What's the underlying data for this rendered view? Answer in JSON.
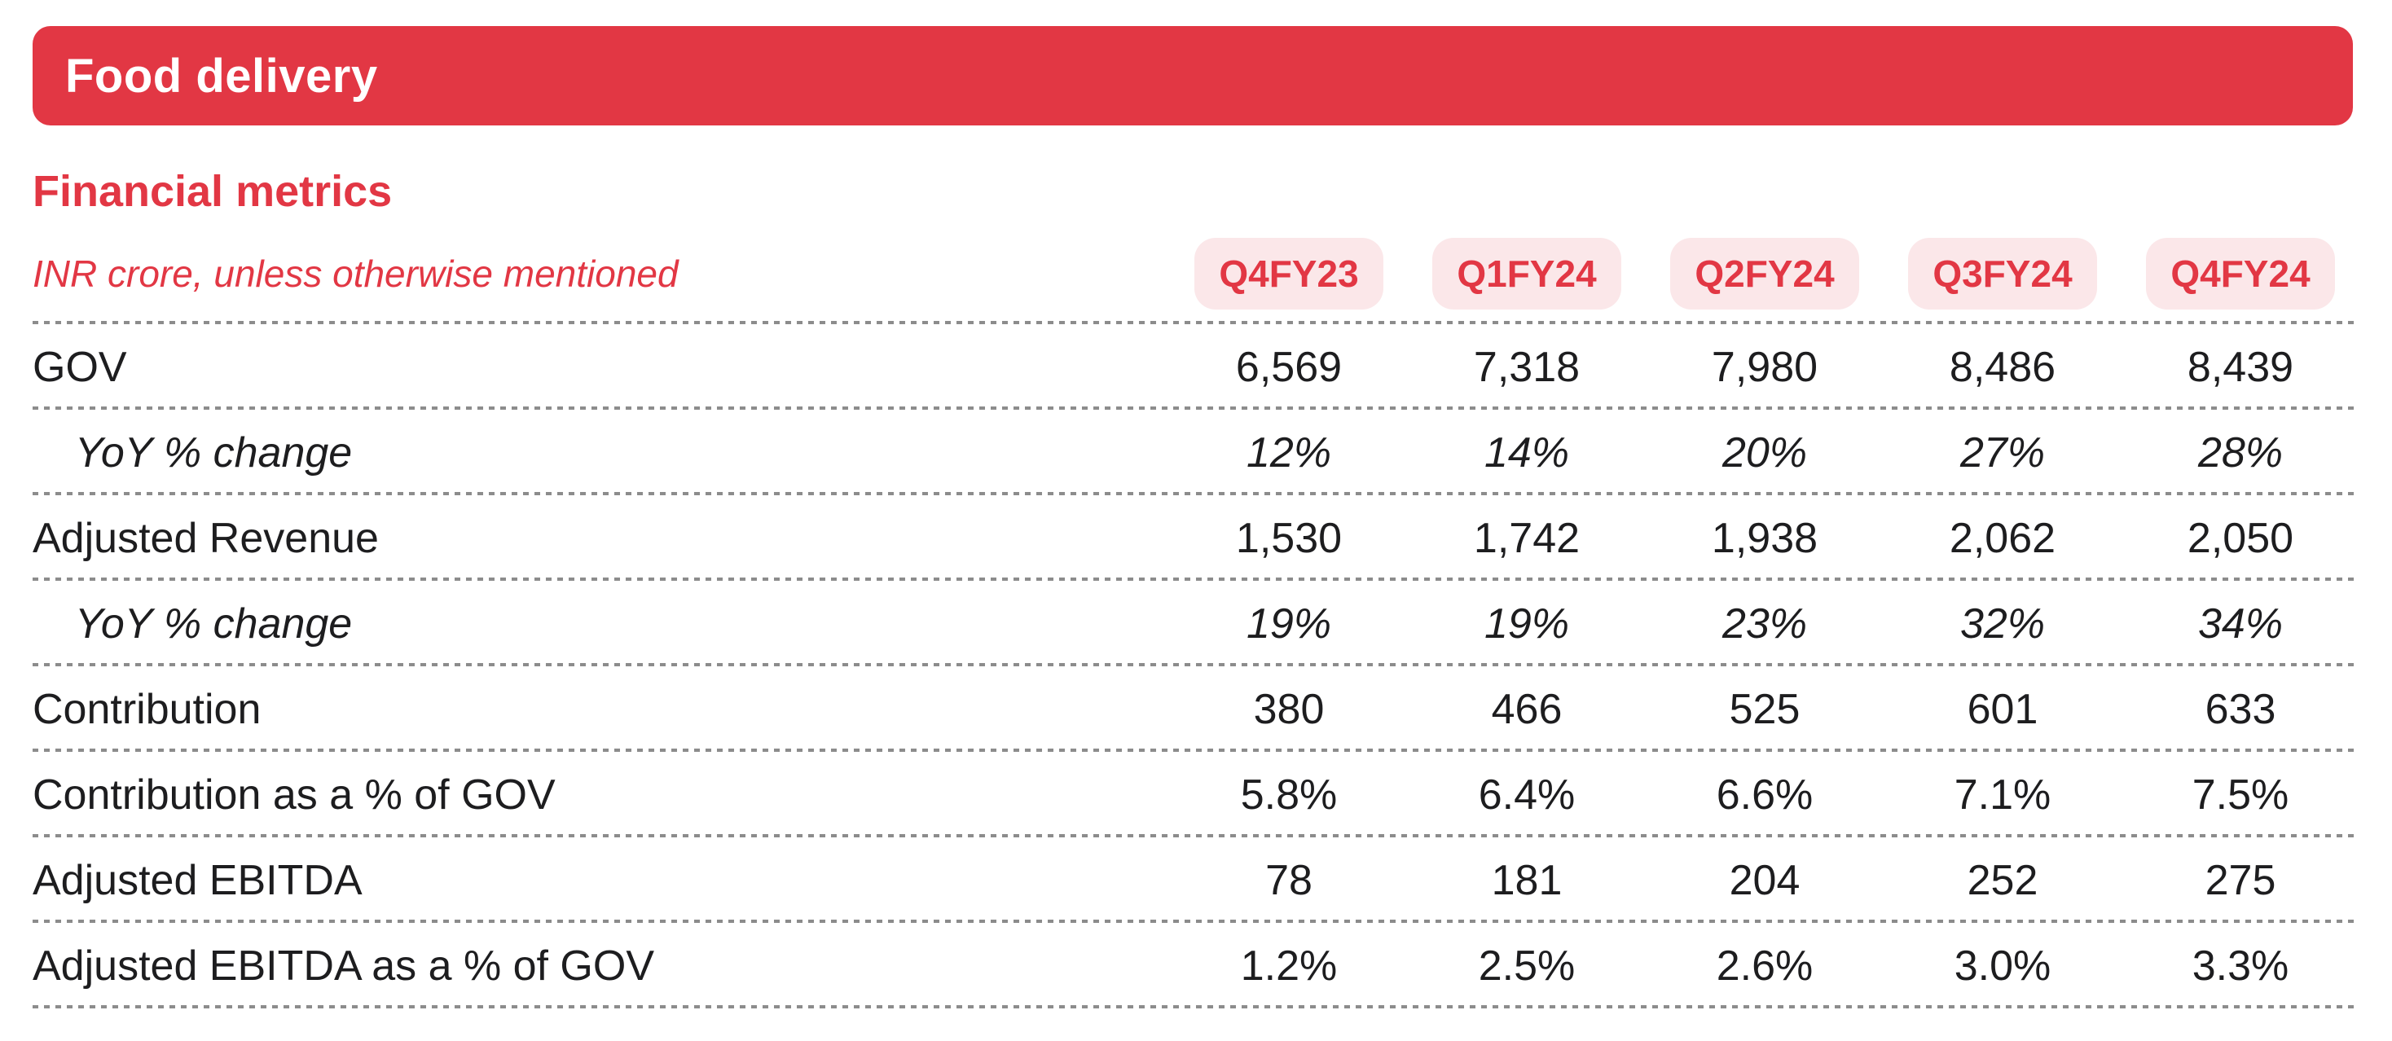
{
  "colors": {
    "brand_red": "#e23744",
    "pill_bg": "#fbe7e9",
    "text_dark": "#1d1d1f",
    "separator_gray": "#8c8c8c"
  },
  "banner": {
    "title": "Food delivery"
  },
  "section": {
    "title": "Financial metrics"
  },
  "table": {
    "unit_note": "INR crore, unless otherwise mentioned",
    "quarters": [
      "Q4FY23",
      "Q1FY24",
      "Q2FY24",
      "Q3FY24",
      "Q4FY24"
    ],
    "rows": [
      {
        "label": "GOV",
        "italic": false,
        "indent": false,
        "values": [
          "6,569",
          "7,318",
          "7,980",
          "8,486",
          "8,439"
        ]
      },
      {
        "label": "YoY % change",
        "italic": true,
        "indent": true,
        "values": [
          "12%",
          "14%",
          "20%",
          "27%",
          "28%"
        ]
      },
      {
        "label": "Adjusted Revenue",
        "italic": false,
        "indent": false,
        "values": [
          "1,530",
          "1,742",
          "1,938",
          "2,062",
          "2,050"
        ]
      },
      {
        "label": "YoY % change",
        "italic": true,
        "indent": true,
        "values": [
          "19%",
          "19%",
          "23%",
          "32%",
          "34%"
        ]
      },
      {
        "label": "Contribution",
        "italic": false,
        "indent": false,
        "values": [
          "380",
          "466",
          "525",
          "601",
          "633"
        ]
      },
      {
        "label": "Contribution as a % of GOV",
        "italic": false,
        "indent": false,
        "values": [
          "5.8%",
          "6.4%",
          "6.6%",
          "7.1%",
          "7.5%"
        ]
      },
      {
        "label": "Adjusted EBITDA",
        "italic": false,
        "indent": false,
        "values": [
          "78",
          "181",
          "204",
          "252",
          "275"
        ]
      },
      {
        "label": "Adjusted EBITDA as a % of GOV",
        "italic": false,
        "indent": false,
        "values": [
          "1.2%",
          "2.5%",
          "2.6%",
          "3.0%",
          "3.3%"
        ]
      }
    ]
  }
}
